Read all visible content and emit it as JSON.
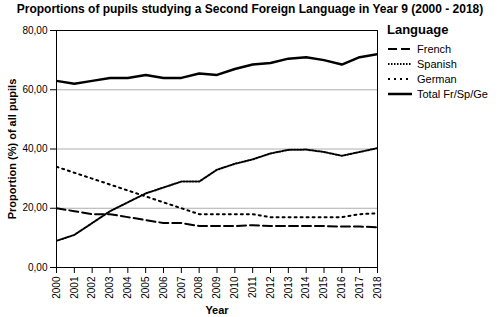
{
  "chart_data": {
    "type": "line",
    "title": "Proportions of pupils studying a Second Foreign Language in Year 9 (2000 - 2018)",
    "x_label": "Year",
    "y_label": "Proportion (%) of all pupils",
    "x": [
      2000,
      2001,
      2002,
      2003,
      2004,
      2005,
      2006,
      2007,
      2008,
      2009,
      2010,
      2011,
      2012,
      2013,
      2014,
      2015,
      2016,
      2017,
      2018
    ],
    "series": [
      {
        "name": "French",
        "color": "#000000",
        "line_style": "dashed",
        "values": [
          20,
          19,
          18,
          18,
          17,
          16,
          15,
          15,
          14,
          14,
          14,
          14.3,
          14,
          14,
          14,
          14,
          13.8,
          13.8,
          13.6
        ]
      },
      {
        "name": "Spanish",
        "color": "#000000",
        "line_style": "dotted",
        "values": [
          9,
          11,
          15,
          19,
          22,
          25,
          27,
          29,
          29,
          33,
          35,
          36.5,
          38.5,
          39.7,
          39.8,
          39,
          37.7,
          39,
          40.3
        ]
      },
      {
        "name": "German",
        "color": "#000000",
        "line_style": "loosely-dotted",
        "values": [
          34,
          32,
          30,
          28,
          26,
          24,
          22,
          20,
          18,
          18,
          18,
          18,
          17,
          17,
          17,
          17,
          17,
          18,
          18.3
        ]
      },
      {
        "name": "Total Fr/Sp/Ge",
        "color": "#000000",
        "line_style": "solid",
        "values": [
          63,
          62,
          63,
          64,
          64,
          65,
          64,
          64,
          65.5,
          65,
          67,
          68.5,
          69,
          70.5,
          71,
          70,
          68.5,
          71,
          72
        ]
      }
    ],
    "legend_title": "Language",
    "legend": "right",
    "xlim": [
      2000,
      2018
    ],
    "xticks": [
      2000,
      2001,
      2002,
      2003,
      2004,
      2005,
      2006,
      2007,
      2008,
      2009,
      2010,
      2011,
      2012,
      2013,
      2014,
      2015,
      2016,
      2017,
      2018
    ],
    "ylim": [
      0,
      80
    ],
    "yticks": [
      {
        "value": 0,
        "label": "0,00"
      },
      {
        "value": 20,
        "label": "20,00"
      },
      {
        "value": 40,
        "label": "40,00"
      },
      {
        "value": 60,
        "label": "60,00"
      },
      {
        "value": 80,
        "label": "80,00"
      }
    ],
    "grid": true
  }
}
